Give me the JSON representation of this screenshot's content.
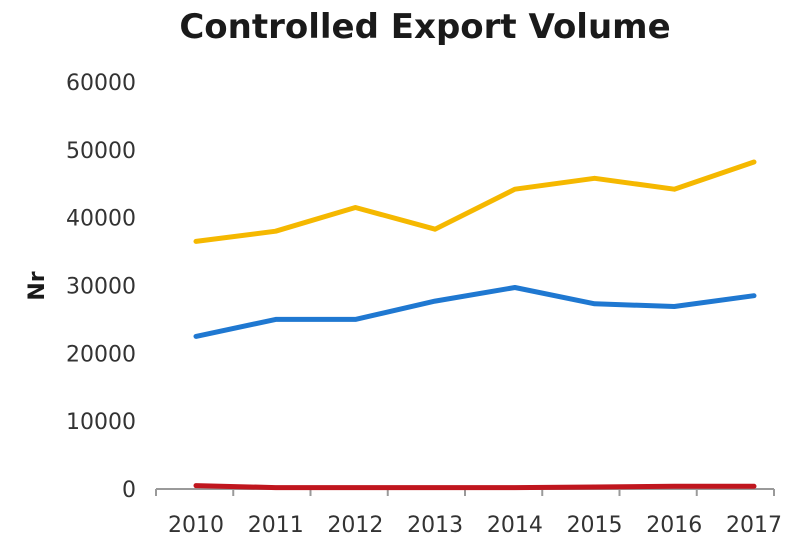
{
  "chart_data": {
    "type": "line",
    "title": "Controlled Export Volume",
    "xlabel": "",
    "ylabel": "Nr",
    "x": [
      "2010",
      "2011",
      "2012",
      "2013",
      "2014",
      "2015",
      "2016",
      "2017"
    ],
    "ylim": [
      0,
      60000
    ],
    "yticks": [
      "0",
      "10000",
      "20000",
      "30000",
      "40000",
      "50000",
      "60000"
    ],
    "grid": false,
    "legend": "none",
    "series": [
      {
        "color": "#F5B800",
        "values": [
          36500,
          38000,
          41500,
          38300,
          44200,
          45800,
          44200,
          48200
        ]
      },
      {
        "color": "#1F78D1",
        "values": [
          22500,
          25000,
          25000,
          27700,
          29700,
          27300,
          26900,
          28500
        ]
      },
      {
        "color": "#C0161E",
        "values": [
          500,
          200,
          200,
          200,
          200,
          300,
          400,
          400
        ]
      }
    ]
  }
}
